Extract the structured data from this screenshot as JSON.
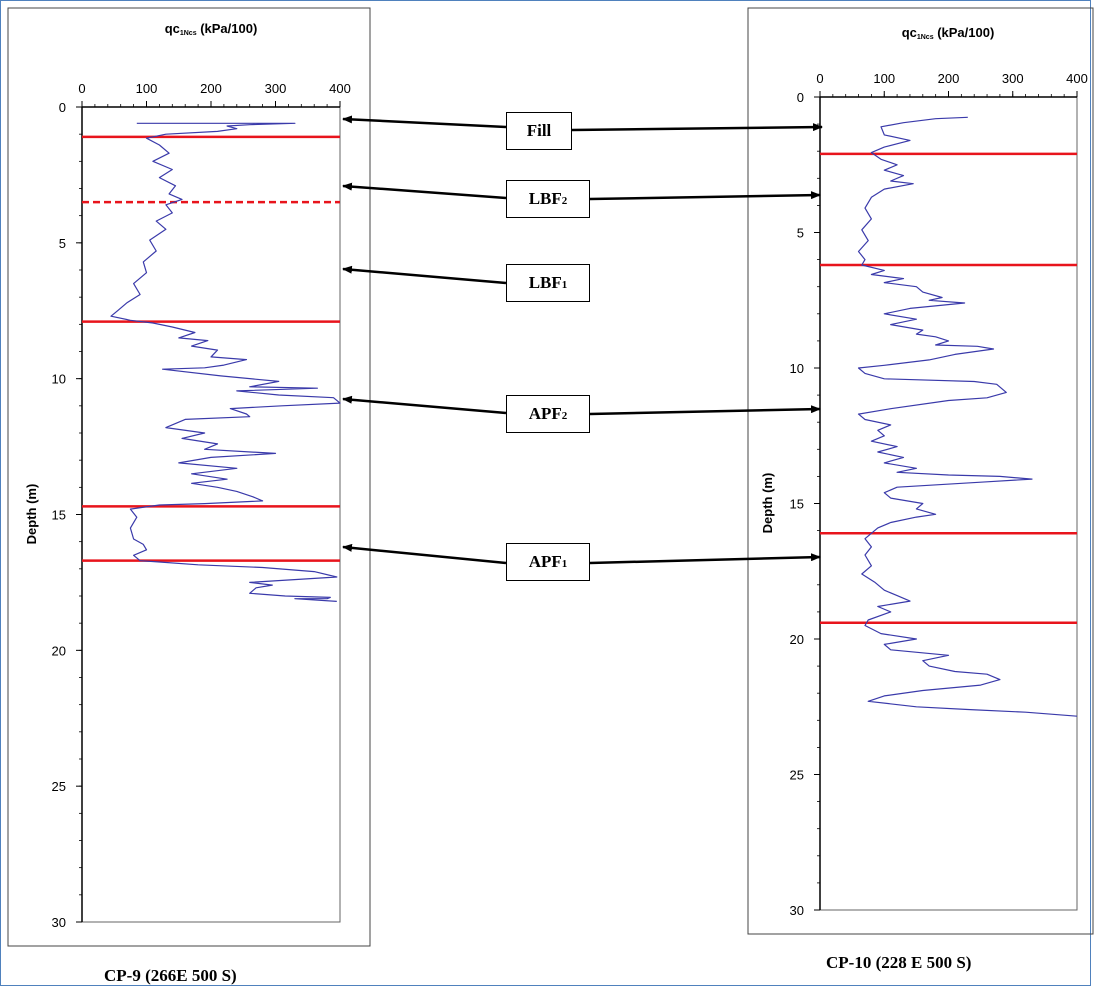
{
  "colors": {
    "curve": "#3a3aaa",
    "boundary": "#e8141c",
    "frame": "#4f81bd"
  },
  "units": {
    "labels": [
      {
        "id": "fill",
        "text": "Fill",
        "sub": ""
      },
      {
        "id": "lbf2",
        "text": "LBF",
        "sub": "2"
      },
      {
        "id": "lbf1",
        "text": "LBF",
        "sub": "1"
      },
      {
        "id": "apf2",
        "text": "APF",
        "sub": "2"
      },
      {
        "id": "apf1",
        "text": "APF",
        "sub": "1"
      }
    ]
  },
  "chart_data": [
    {
      "type": "line",
      "caption": "CP-9 (266E 500 S)",
      "xlabel_main": "qc",
      "xlabel_sub": "1Ncs",
      "xlabel_unit": " (kPa/100)",
      "ylabel": "Depth (m)",
      "xlim": [
        0,
        400
      ],
      "ylim": [
        0,
        30
      ],
      "y_inverted": true,
      "x_ticks": [
        "0",
        "100",
        "200",
        "300",
        "400"
      ],
      "y_ticks": [
        "0",
        "5",
        "10",
        "15",
        "20",
        "25",
        "30"
      ],
      "boundaries": [
        {
          "depth": 1.1,
          "style": "solid"
        },
        {
          "depth": 3.5,
          "style": "dashed"
        },
        {
          "depth": 7.9,
          "style": "solid"
        },
        {
          "depth": 14.7,
          "style": "solid"
        },
        {
          "depth": 16.7,
          "style": "solid"
        }
      ],
      "series": [
        {
          "points": [
            [
              85,
              0.6
            ],
            [
              330,
              0.6
            ],
            [
              260,
              0.65
            ],
            [
              225,
              0.7
            ],
            [
              240,
              0.8
            ],
            [
              210,
              0.9
            ],
            [
              130,
              1.0
            ],
            [
              100,
              1.15
            ],
            [
              120,
              1.4
            ],
            [
              135,
              1.7
            ],
            [
              110,
              2.0
            ],
            [
              140,
              2.3
            ],
            [
              120,
              2.6
            ],
            [
              145,
              2.9
            ],
            [
              135,
              3.2
            ],
            [
              155,
              3.4
            ],
            [
              130,
              3.6
            ],
            [
              140,
              3.9
            ],
            [
              115,
              4.2
            ],
            [
              130,
              4.5
            ],
            [
              105,
              4.9
            ],
            [
              115,
              5.3
            ],
            [
              95,
              5.7
            ],
            [
              100,
              6.1
            ],
            [
              80,
              6.5
            ],
            [
              90,
              6.9
            ],
            [
              70,
              7.2
            ],
            [
              55,
              7.5
            ],
            [
              45,
              7.7
            ],
            [
              75,
              7.85
            ],
            [
              110,
              7.95
            ],
            [
              140,
              8.1
            ],
            [
              175,
              8.3
            ],
            [
              150,
              8.5
            ],
            [
              195,
              8.6
            ],
            [
              170,
              8.8
            ],
            [
              210,
              8.95
            ],
            [
              200,
              9.2
            ],
            [
              255,
              9.3
            ],
            [
              220,
              9.5
            ],
            [
              190,
              9.6
            ],
            [
              125,
              9.65
            ],
            [
              215,
              9.9
            ],
            [
              305,
              10.1
            ],
            [
              260,
              10.3
            ],
            [
              365,
              10.35
            ],
            [
              240,
              10.45
            ],
            [
              305,
              10.6
            ],
            [
              390,
              10.7
            ],
            [
              400,
              10.9
            ],
            [
              310,
              11.0
            ],
            [
              230,
              11.1
            ],
            [
              255,
              11.3
            ],
            [
              260,
              11.4
            ],
            [
              160,
              11.5
            ],
            [
              130,
              11.8
            ],
            [
              190,
              12.0
            ],
            [
              155,
              12.2
            ],
            [
              210,
              12.4
            ],
            [
              190,
              12.6
            ],
            [
              300,
              12.75
            ],
            [
              200,
              12.9
            ],
            [
              150,
              13.1
            ],
            [
              240,
              13.3
            ],
            [
              170,
              13.5
            ],
            [
              225,
              13.7
            ],
            [
              170,
              13.85
            ],
            [
              210,
              14.0
            ],
            [
              240,
              14.15
            ],
            [
              265,
              14.35
            ],
            [
              280,
              14.5
            ],
            [
              190,
              14.6
            ],
            [
              120,
              14.65
            ],
            [
              75,
              14.8
            ],
            [
              85,
              15.1
            ],
            [
              75,
              15.5
            ],
            [
              80,
              15.9
            ],
            [
              95,
              16.1
            ],
            [
              100,
              16.3
            ],
            [
              80,
              16.5
            ],
            [
              90,
              16.7
            ],
            [
              120,
              16.75
            ],
            [
              180,
              16.85
            ],
            [
              280,
              16.95
            ],
            [
              360,
              17.1
            ],
            [
              395,
              17.3
            ],
            [
              260,
              17.5
            ],
            [
              295,
              17.6
            ],
            [
              270,
              17.7
            ],
            [
              260,
              17.9
            ],
            [
              315,
              18.0
            ],
            [
              385,
              18.05
            ],
            [
              380,
              18.1
            ],
            [
              330,
              18.1
            ],
            [
              395,
              18.2
            ]
          ]
        }
      ]
    },
    {
      "type": "line",
      "caption": "CP-10 (228 E 500 S)",
      "xlabel_main": "qc",
      "xlabel_sub": "1Ncs",
      "xlabel_unit": " (kPa/100)",
      "ylabel": "Depth (m)",
      "xlim": [
        0,
        400
      ],
      "ylim": [
        0,
        30
      ],
      "y_inverted": true,
      "x_ticks": [
        "0",
        "100",
        "200",
        "300",
        "400"
      ],
      "y_ticks": [
        "0",
        "5",
        "10",
        "15",
        "20",
        "25",
        "30"
      ],
      "boundaries": [
        {
          "depth": 2.1,
          "style": "solid"
        },
        {
          "depth": 6.2,
          "style": "solid"
        },
        {
          "depth": 16.1,
          "style": "solid"
        },
        {
          "depth": 19.4,
          "style": "solid"
        }
      ],
      "series": [
        {
          "points": [
            [
              230,
              0.75
            ],
            [
              180,
              0.8
            ],
            [
              130,
              0.95
            ],
            [
              95,
              1.1
            ],
            [
              100,
              1.4
            ],
            [
              140,
              1.6
            ],
            [
              100,
              1.85
            ],
            [
              80,
              2.05
            ],
            [
              95,
              2.3
            ],
            [
              120,
              2.5
            ],
            [
              100,
              2.7
            ],
            [
              130,
              2.9
            ],
            [
              110,
              3.1
            ],
            [
              145,
              3.2
            ],
            [
              100,
              3.4
            ],
            [
              80,
              3.7
            ],
            [
              70,
              4.1
            ],
            [
              80,
              4.5
            ],
            [
              65,
              4.9
            ],
            [
              75,
              5.3
            ],
            [
              60,
              5.7
            ],
            [
              70,
              6.0
            ],
            [
              65,
              6.2
            ],
            [
              100,
              6.4
            ],
            [
              80,
              6.55
            ],
            [
              130,
              6.7
            ],
            [
              100,
              6.85
            ],
            [
              150,
              7.0
            ],
            [
              160,
              7.2
            ],
            [
              190,
              7.4
            ],
            [
              170,
              7.5
            ],
            [
              225,
              7.6
            ],
            [
              140,
              7.8
            ],
            [
              100,
              8.0
            ],
            [
              150,
              8.2
            ],
            [
              110,
              8.4
            ],
            [
              160,
              8.6
            ],
            [
              150,
              8.75
            ],
            [
              180,
              8.85
            ],
            [
              200,
              9.0
            ],
            [
              180,
              9.15
            ],
            [
              245,
              9.2
            ],
            [
              270,
              9.3
            ],
            [
              210,
              9.5
            ],
            [
              170,
              9.7
            ],
            [
              100,
              9.9
            ],
            [
              60,
              10.0
            ],
            [
              70,
              10.2
            ],
            [
              100,
              10.4
            ],
            [
              240,
              10.5
            ],
            [
              275,
              10.6
            ],
            [
              290,
              10.9
            ],
            [
              260,
              11.1
            ],
            [
              200,
              11.2
            ],
            [
              110,
              11.5
            ],
            [
              60,
              11.7
            ],
            [
              70,
              11.9
            ],
            [
              110,
              12.1
            ],
            [
              90,
              12.3
            ],
            [
              100,
              12.5
            ],
            [
              80,
              12.7
            ],
            [
              120,
              12.9
            ],
            [
              90,
              13.1
            ],
            [
              130,
              13.3
            ],
            [
              100,
              13.5
            ],
            [
              150,
              13.7
            ],
            [
              120,
              13.85
            ],
            [
              200,
              13.95
            ],
            [
              280,
              14.0
            ],
            [
              330,
              14.1
            ],
            [
              260,
              14.2
            ],
            [
              120,
              14.4
            ],
            [
              100,
              14.6
            ],
            [
              110,
              14.8
            ],
            [
              160,
              15.0
            ],
            [
              150,
              15.2
            ],
            [
              180,
              15.4
            ],
            [
              150,
              15.5
            ],
            [
              110,
              15.7
            ],
            [
              90,
              15.9
            ],
            [
              80,
              16.1
            ],
            [
              70,
              16.3
            ],
            [
              80,
              16.6
            ],
            [
              70,
              16.9
            ],
            [
              80,
              17.3
            ],
            [
              65,
              17.6
            ],
            [
              85,
              17.9
            ],
            [
              100,
              18.2
            ],
            [
              120,
              18.4
            ],
            [
              140,
              18.6
            ],
            [
              90,
              18.8
            ],
            [
              110,
              19.0
            ],
            [
              75,
              19.3
            ],
            [
              70,
              19.5
            ],
            [
              95,
              19.8
            ],
            [
              150,
              20.0
            ],
            [
              100,
              20.2
            ],
            [
              110,
              20.4
            ],
            [
              200,
              20.6
            ],
            [
              160,
              20.8
            ],
            [
              170,
              21.0
            ],
            [
              210,
              21.2
            ],
            [
              260,
              21.3
            ],
            [
              280,
              21.5
            ],
            [
              250,
              21.7
            ],
            [
              160,
              21.9
            ],
            [
              100,
              22.1
            ],
            [
              75,
              22.3
            ],
            [
              150,
              22.5
            ],
            [
              230,
              22.6
            ],
            [
              320,
              22.7
            ],
            [
              400,
              22.85
            ]
          ]
        }
      ]
    }
  ]
}
